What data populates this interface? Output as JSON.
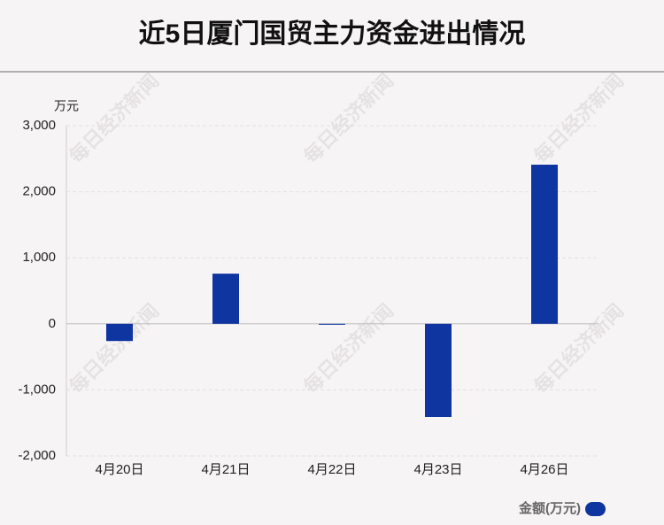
{
  "chart_data": {
    "type": "bar",
    "title": "近5日厦门国贸主力资金进出情况",
    "y_unit": "万元",
    "watermark": "每日经济新闻",
    "categories": [
      "4月20日",
      "4月21日",
      "4月22日",
      "4月23日",
      "4月26日"
    ],
    "series": [
      {
        "name": "金额(万元)",
        "color": "#0e35a0",
        "values": [
          -260,
          760,
          -10,
          -1410,
          2410
        ]
      }
    ],
    "ylim": [
      -2000,
      3000
    ],
    "yticks": [
      {
        "value": -2000,
        "label": "-2,000"
      },
      {
        "value": -1000,
        "label": "-1,000"
      },
      0,
      {
        "value": 1000,
        "label": "1,000"
      },
      {
        "value": 2000,
        "label": "2,000"
      },
      {
        "value": 3000,
        "label": "3,000"
      }
    ],
    "grid": true,
    "legend": "bottom-right"
  }
}
